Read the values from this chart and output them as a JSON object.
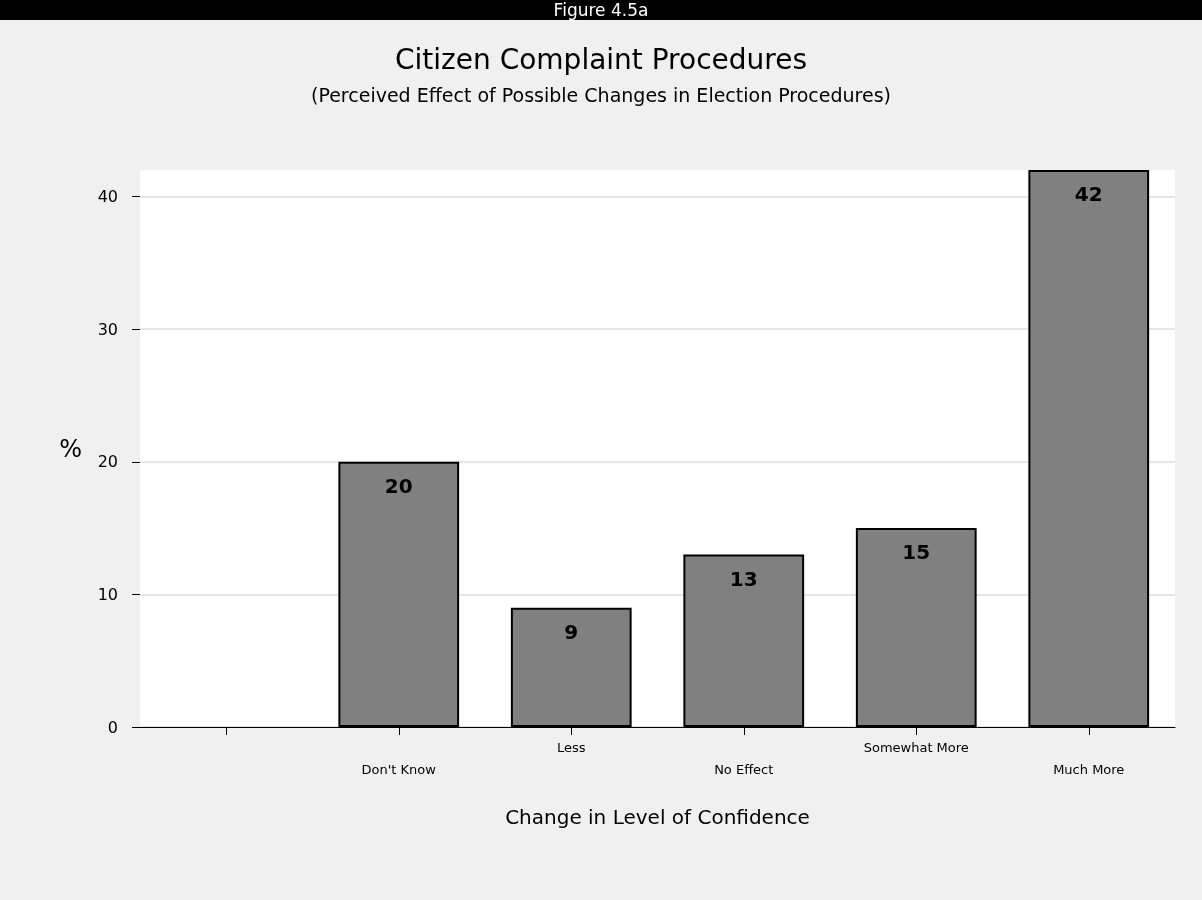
{
  "chart_data": {
    "type": "bar",
    "title": "Citizen Complaint Procedures",
    "subtitle": "(Perceived Effect of Possible Changes in Election Procedures)",
    "annotations": [
      "Figure 4.5a"
    ],
    "xlabel": "Change in Level of Confidence",
    "ylabel": "%",
    "categories": [
      null,
      "Don't Know",
      "Less",
      "No Effect",
      "Somewhat More",
      "Much More"
    ],
    "values": [
      null,
      20,
      9,
      13,
      15,
      42
    ],
    "color": "#808080",
    "data_labels": true,
    "ylim": [
      0,
      42
    ],
    "yticks": [
      0,
      10,
      20,
      30,
      40
    ],
    "grid": "y"
  }
}
